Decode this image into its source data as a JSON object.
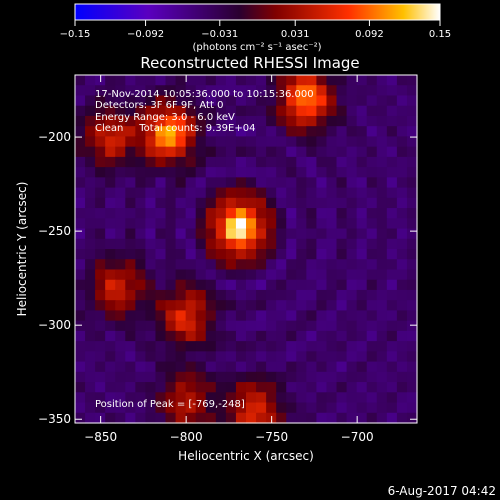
{
  "chart_data": {
    "type": "heatmap",
    "title": "Reconstructed RHESSI Image",
    "xlabel": "Heliocentric X (arcsec)",
    "ylabel": "Heliocentric Y (arcsec)",
    "xlim": [
      -865,
      -665
    ],
    "ylim": [
      -352,
      -167
    ],
    "x_ticks": [
      -850,
      -800,
      -750,
      -700
    ],
    "y_ticks": [
      -200,
      -250,
      -300,
      -350
    ],
    "colorbar": {
      "range": [
        -0.15,
        0.15
      ],
      "ticks": [
        "-0.15",
        "-0.092",
        "-0.031",
        "0.031",
        "0.092",
        "0.15"
      ],
      "unit_label": "(photons cm⁻² s⁻¹ asec⁻²)",
      "colors": [
        "#0000ff",
        "#5a00c0",
        "#2a0030",
        "#800000",
        "#ff3000",
        "#ffc000",
        "#ffffff"
      ]
    },
    "annotations": [
      "17-Nov-2014 10:05:36.000 to 10:15:36.000",
      "Detectors: 3F 6F 9F, Att 0",
      "Energy Range: 3.0 - 6.0 keV",
      "Clean     Total counts: 9.39E+04"
    ],
    "peak_label": "Position of Peak = [-769,-248]",
    "peak": {
      "x": -769,
      "y": -248
    },
    "sources": [
      {
        "x": -769,
        "y": -248,
        "intensity": 0.15
      },
      {
        "x": -810,
        "y": -198,
        "intensity": 0.11
      },
      {
        "x": -730,
        "y": -180,
        "intensity": 0.1
      },
      {
        "x": -845,
        "y": -200,
        "intensity": 0.05
      },
      {
        "x": -800,
        "y": -295,
        "intensity": 0.06
      },
      {
        "x": -840,
        "y": -280,
        "intensity": 0.05
      },
      {
        "x": -760,
        "y": -345,
        "intensity": 0.06
      },
      {
        "x": -800,
        "y": -340,
        "intensity": 0.04
      }
    ]
  },
  "footer": {
    "date": "6-Aug-2017 04:42"
  }
}
